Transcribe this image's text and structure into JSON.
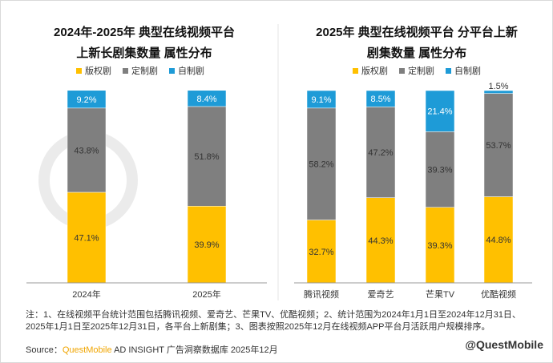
{
  "chart_data": [
    {
      "type": "bar",
      "stacked": true,
      "title_line1": "2024年-2025年 典型在线视频平台",
      "title_line2": "上新长剧集数量 属性分布",
      "categories": [
        "2024年",
        "2025年"
      ],
      "series": [
        {
          "name": "版权剧",
          "values": [
            47.1,
            39.9
          ],
          "labels": [
            "47.1%",
            "39.9%"
          ]
        },
        {
          "name": "定制剧",
          "values": [
            43.8,
            51.8
          ],
          "labels": [
            "43.8%",
            "51.8%"
          ]
        },
        {
          "name": "自制剧",
          "values": [
            9.2,
            8.4
          ],
          "labels": [
            "9.2%",
            "8.4%"
          ]
        }
      ],
      "ylim": [
        0,
        100
      ],
      "legend_position": "top"
    },
    {
      "type": "bar",
      "stacked": true,
      "title_line1": "2025年 典型在线视频平台 分平台上新",
      "title_line2": "剧集数量 属性分布",
      "categories": [
        "腾讯视频",
        "爱奇艺",
        "芒果TV",
        "优酷视频"
      ],
      "series": [
        {
          "name": "版权剧",
          "values": [
            32.7,
            44.3,
            39.3,
            44.8
          ],
          "labels": [
            "32.7%",
            "44.3%",
            "39.3%",
            "44.8%"
          ]
        },
        {
          "name": "定制剧",
          "values": [
            58.2,
            47.2,
            39.3,
            53.7
          ],
          "labels": [
            "58.2%",
            "47.2%",
            "39.3%",
            "53.7%"
          ]
        },
        {
          "name": "自制剧",
          "values": [
            9.1,
            8.5,
            21.4,
            1.5
          ],
          "labels": [
            "9.1%",
            "8.5%",
            "21.4%",
            "1.5%"
          ]
        }
      ],
      "ylim": [
        0,
        100
      ],
      "legend_position": "top"
    }
  ],
  "colors": {
    "版权剧": "#ffc000",
    "定制剧": "#7f7f7f",
    "自制剧": "#1e9bd7"
  },
  "footnote": "注：1、在线视频平台统计范围包括腾讯视频、爱奇艺、芒果TV、优酷视频；2、统计范围为2024年1月1日至2024年12月31日、2025年1月1日至2025年12月31日，各平台上新剧集；3、图表按照2025年12月在线视频APP平台月活跃用户规模排序。",
  "source": {
    "prefix": "Source：",
    "brand": "QuestMobile",
    "rest": " AD INSIGHT 广告洞察数据库 2025年12月"
  },
  "watermark": "@QuestMobile"
}
